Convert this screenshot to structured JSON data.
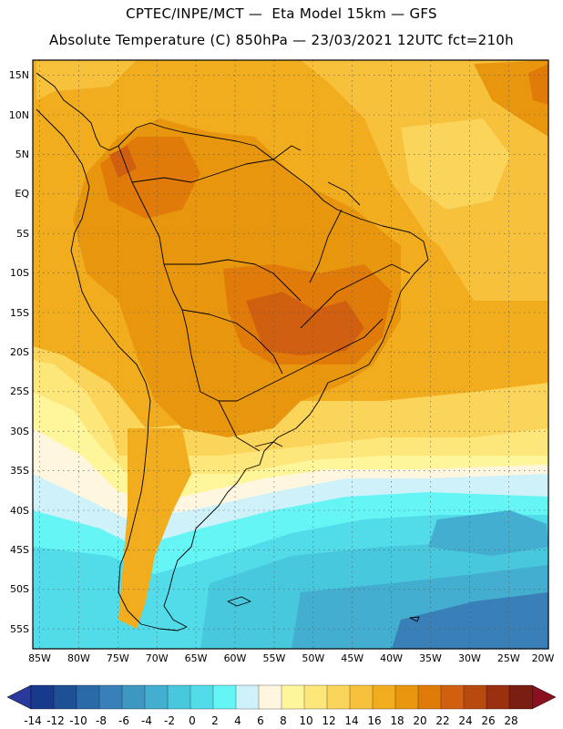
{
  "header": {
    "line1": "CPTEC/INPE/MCT —  Eta Model 15km — GFS",
    "line2": "Absolute Temperature (C) 850hPa — 23/03/2021 12UTC fct=210h"
  },
  "map": {
    "lat_labels": [
      "15N",
      "10N",
      "5N",
      "EQ",
      "5S",
      "10S",
      "15S",
      "20S",
      "25S",
      "30S",
      "35S",
      "40S",
      "45S",
      "50S",
      "55S"
    ],
    "lon_labels": [
      "85W",
      "80W",
      "75W",
      "70W",
      "65W",
      "60W",
      "55W",
      "50W",
      "45W",
      "40W",
      "35W",
      "30W",
      "25W",
      "20W"
    ]
  },
  "colorbar": {
    "labels": [
      "-14",
      "-12",
      "-10",
      "-8",
      "-6",
      "-4",
      "-2",
      "0",
      "2",
      "4",
      "6",
      "8",
      "10",
      "12",
      "14",
      "16",
      "18",
      "20",
      "22",
      "24",
      "26",
      "28"
    ],
    "colors": [
      "#173a8c",
      "#1e5096",
      "#2a6aa8",
      "#3a80b8",
      "#3d97c0",
      "#43aed0",
      "#48c8dc",
      "#52dcea",
      "#66f5f5",
      "#cff2fa",
      "#fff6df",
      "#fff59a",
      "#fde67a",
      "#fbd45a",
      "#f7c13c",
      "#f1ad1e",
      "#e8960e",
      "#e07a08",
      "#d06010",
      "#b84a10",
      "#9a3010",
      "#7a1e12"
    ],
    "end_low_color": "#2a3a9a",
    "end_high_color": "#8a1020"
  }
}
